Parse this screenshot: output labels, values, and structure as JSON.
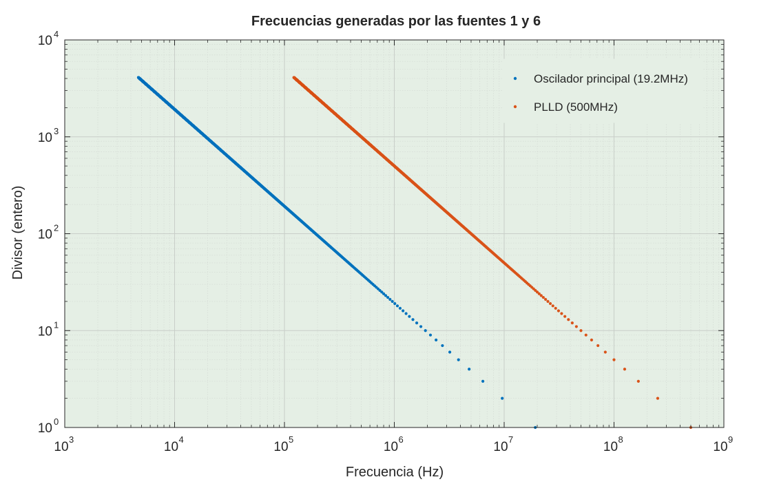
{
  "chart_data": {
    "type": "scatter",
    "title": "Frecuencias generadas por las fuentes 1 y 6",
    "xlabel": "Frecuencia (Hz)",
    "ylabel": "Divisor (entero)",
    "xscale": "log",
    "yscale": "log",
    "xlim": [
      1000,
      1000000000
    ],
    "ylim": [
      1,
      10000
    ],
    "grid": true,
    "minor_grid": true,
    "legend_position": "top-right",
    "x_ticks": [
      {
        "base": "10",
        "exp": "3"
      },
      {
        "base": "10",
        "exp": "4"
      },
      {
        "base": "10",
        "exp": "5"
      },
      {
        "base": "10",
        "exp": "6"
      },
      {
        "base": "10",
        "exp": "7"
      },
      {
        "base": "10",
        "exp": "8"
      },
      {
        "base": "10",
        "exp": "9"
      }
    ],
    "y_ticks": [
      {
        "base": "10",
        "exp": "0"
      },
      {
        "base": "10",
        "exp": "1"
      },
      {
        "base": "10",
        "exp": "2"
      },
      {
        "base": "10",
        "exp": "3"
      },
      {
        "base": "10",
        "exp": "4"
      }
    ],
    "series": [
      {
        "name": "Oscilador principal (19.2MHz)",
        "color": "#0072BD",
        "source_frequency_hz": 19200000,
        "divisor_range": [
          1,
          4095
        ],
        "relation": "x = source_frequency_hz / y"
      },
      {
        "name": "PLLD (500MHz)",
        "color": "#D95319",
        "source_frequency_hz": 500000000,
        "divisor_range": [
          1,
          4095
        ],
        "relation": "x = source_frequency_hz / y"
      }
    ]
  },
  "colors": {
    "plot_background": "#E5EFE5",
    "grid_major": "#C8CEC8",
    "grid_minor": "#D6DDD6",
    "axis": "#262626"
  }
}
